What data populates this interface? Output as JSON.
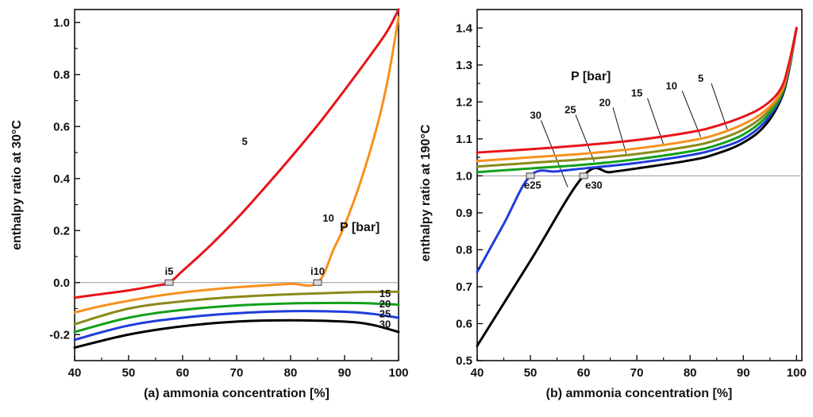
{
  "chart_data": [
    {
      "id": "a",
      "type": "line",
      "xlabel": "(a) ammonia concentration [%]",
      "ylabel": "enthalpy ratio at 30°C",
      "xlim": [
        40,
        100
      ],
      "ylim": [
        -0.3,
        1.05
      ],
      "xticks": [
        40,
        50,
        60,
        70,
        80,
        90,
        100
      ],
      "yticks": [
        -0.2,
        0.0,
        0.2,
        0.4,
        0.6,
        0.8,
        1.0
      ],
      "ytick_labels": [
        "-0.2",
        "0.0",
        "0.2",
        "0.4",
        "0.6",
        "0.8",
        "1.0"
      ],
      "reference_line": 0,
      "legend_title": "P [bar]",
      "series": [
        {
          "name": "5",
          "color": "#e8141b",
          "x": [
            40,
            45,
            50,
            55,
            57.5,
            60,
            65,
            70,
            75,
            80,
            85,
            90,
            95,
            98,
            100
          ],
          "y": [
            -0.058,
            -0.044,
            -0.03,
            -0.012,
            0.0,
            0.045,
            0.14,
            0.245,
            0.36,
            0.48,
            0.605,
            0.74,
            0.88,
            0.97,
            1.05
          ]
        },
        {
          "name": "10",
          "color": "#f7901e",
          "x": [
            40,
            45,
            50,
            55,
            60,
            65,
            70,
            75,
            80,
            85,
            88,
            90,
            93,
            96,
            98,
            100
          ],
          "y": [
            -0.115,
            -0.09,
            -0.07,
            -0.052,
            -0.038,
            -0.027,
            -0.018,
            -0.011,
            -0.005,
            0.0,
            0.13,
            0.22,
            0.39,
            0.6,
            0.78,
            1.02
          ]
        },
        {
          "name": "15",
          "color": "#8a8a1a",
          "x": [
            40,
            50,
            60,
            70,
            80,
            90,
            95,
            100
          ],
          "y": [
            -0.16,
            -0.1,
            -0.072,
            -0.055,
            -0.045,
            -0.038,
            -0.036,
            -0.035
          ]
        },
        {
          "name": "20",
          "color": "#12a01a",
          "x": [
            40,
            50,
            60,
            70,
            80,
            90,
            95,
            100
          ],
          "y": [
            -0.19,
            -0.135,
            -0.105,
            -0.088,
            -0.08,
            -0.078,
            -0.08,
            -0.085
          ]
        },
        {
          "name": "25",
          "color": "#1f3ddb",
          "x": [
            40,
            50,
            60,
            70,
            80,
            90,
            95,
            100
          ],
          "y": [
            -0.22,
            -0.165,
            -0.135,
            -0.118,
            -0.11,
            -0.112,
            -0.12,
            -0.135
          ]
        },
        {
          "name": "30",
          "color": "#000000",
          "x": [
            40,
            50,
            60,
            70,
            80,
            90,
            95,
            100
          ],
          "y": [
            -0.25,
            -0.2,
            -0.168,
            -0.15,
            -0.145,
            -0.15,
            -0.162,
            -0.19
          ]
        }
      ],
      "markers": [
        {
          "label": "i5",
          "x": 57.5,
          "y": 0.0
        },
        {
          "label": "i10",
          "x": 85,
          "y": 0.0
        }
      ],
      "curve_labels": [
        {
          "text": "5",
          "x": 71.5,
          "y": 0.545
        },
        {
          "text": "10",
          "x": 87,
          "y": 0.25
        },
        {
          "text": "15",
          "x": 97.5,
          "y": -0.04
        },
        {
          "text": "20",
          "x": 97.5,
          "y": -0.08
        },
        {
          "text": "25",
          "x": 97.5,
          "y": -0.118
        },
        {
          "text": "30",
          "x": 97.5,
          "y": -0.158
        }
      ]
    },
    {
      "id": "b",
      "type": "line",
      "xlabel": "(b) ammonia concentration [%]",
      "ylabel": "enthalpy ratio at 190°C",
      "xlim": [
        40,
        101
      ],
      "ylim": [
        0.5,
        1.45
      ],
      "xticks": [
        40,
        50,
        60,
        70,
        80,
        90,
        100
      ],
      "yticks": [
        0.5,
        0.6,
        0.7,
        0.8,
        0.9,
        1.0,
        1.1,
        1.2,
        1.3,
        1.4
      ],
      "ytick_labels": [
        "0.5",
        "0.6",
        "0.7",
        "0.8",
        "0.9",
        "1.0",
        "1.1",
        "1.2",
        "1.3",
        "1.4"
      ],
      "reference_line": 1.0,
      "legend_title": "P [bar]",
      "series": [
        {
          "name": "5",
          "color": "#e8141b",
          "x": [
            40,
            50,
            60,
            70,
            80,
            85,
            90,
            94,
            97,
            98.5,
            100
          ],
          "y": [
            1.063,
            1.072,
            1.083,
            1.097,
            1.118,
            1.135,
            1.16,
            1.19,
            1.235,
            1.3,
            1.4
          ]
        },
        {
          "name": "10",
          "color": "#f7901e",
          "x": [
            40,
            50,
            60,
            70,
            80,
            85,
            90,
            94,
            97,
            98.5,
            100
          ],
          "y": [
            1.04,
            1.05,
            1.06,
            1.074,
            1.095,
            1.112,
            1.14,
            1.175,
            1.225,
            1.295,
            1.4
          ]
        },
        {
          "name": "15",
          "color": "#8a8a1a",
          "x": [
            40,
            50,
            60,
            70,
            80,
            85,
            90,
            94,
            97,
            98.5,
            100
          ],
          "y": [
            1.025,
            1.035,
            1.045,
            1.059,
            1.08,
            1.097,
            1.125,
            1.165,
            1.22,
            1.29,
            1.4
          ]
        },
        {
          "name": "20",
          "color": "#12a01a",
          "x": [
            40,
            50,
            60,
            70,
            80,
            85,
            90,
            94,
            97,
            98.5,
            100
          ],
          "y": [
            1.01,
            1.02,
            1.03,
            1.045,
            1.066,
            1.083,
            1.112,
            1.155,
            1.215,
            1.29,
            1.4
          ]
        },
        {
          "name": "25",
          "color": "#1f3ddb",
          "x": [
            40,
            45,
            50,
            55,
            60,
            70,
            80,
            85,
            90,
            94,
            97,
            98.5,
            100
          ],
          "y": [
            0.74,
            0.87,
            1.0,
            1.012,
            1.02,
            1.035,
            1.056,
            1.073,
            1.1,
            1.145,
            1.21,
            1.285,
            1.4
          ]
        },
        {
          "name": "30",
          "color": "#000000",
          "x": [
            40,
            50,
            60,
            65,
            70,
            80,
            85,
            90,
            94,
            97,
            98.5,
            100
          ],
          "y": [
            0.54,
            0.77,
            1.0,
            1.01,
            1.02,
            1.042,
            1.06,
            1.09,
            1.135,
            1.205,
            1.28,
            1.4
          ]
        }
      ],
      "markers": [
        {
          "label": "e25",
          "x": 50,
          "y": 1.0
        },
        {
          "label": "e30",
          "x": 60,
          "y": 1.0
        }
      ],
      "curve_labels": [
        {
          "text": "5",
          "x": 82,
          "y": 1.265
        },
        {
          "text": "10",
          "x": 76.5,
          "y": 1.245
        },
        {
          "text": "15",
          "x": 70,
          "y": 1.225
        },
        {
          "text": "20",
          "x": 64,
          "y": 1.2
        },
        {
          "text": "25",
          "x": 57.5,
          "y": 1.18
        },
        {
          "text": "30",
          "x": 51,
          "y": 1.165
        }
      ],
      "leaders": [
        {
          "from": [
            84,
            1.25
          ],
          "to": [
            87,
            1.125
          ]
        },
        {
          "from": [
            78.5,
            1.23
          ],
          "to": [
            82,
            1.105
          ]
        },
        {
          "from": [
            72,
            1.21
          ],
          "to": [
            75,
            1.085
          ]
        },
        {
          "from": [
            65.5,
            1.185
          ],
          "to": [
            68,
            1.06
          ]
        },
        {
          "from": [
            58.5,
            1.165
          ],
          "to": [
            62,
            1.038
          ]
        },
        {
          "from": [
            52,
            1.15
          ],
          "to": [
            57,
            0.97
          ]
        }
      ]
    }
  ]
}
